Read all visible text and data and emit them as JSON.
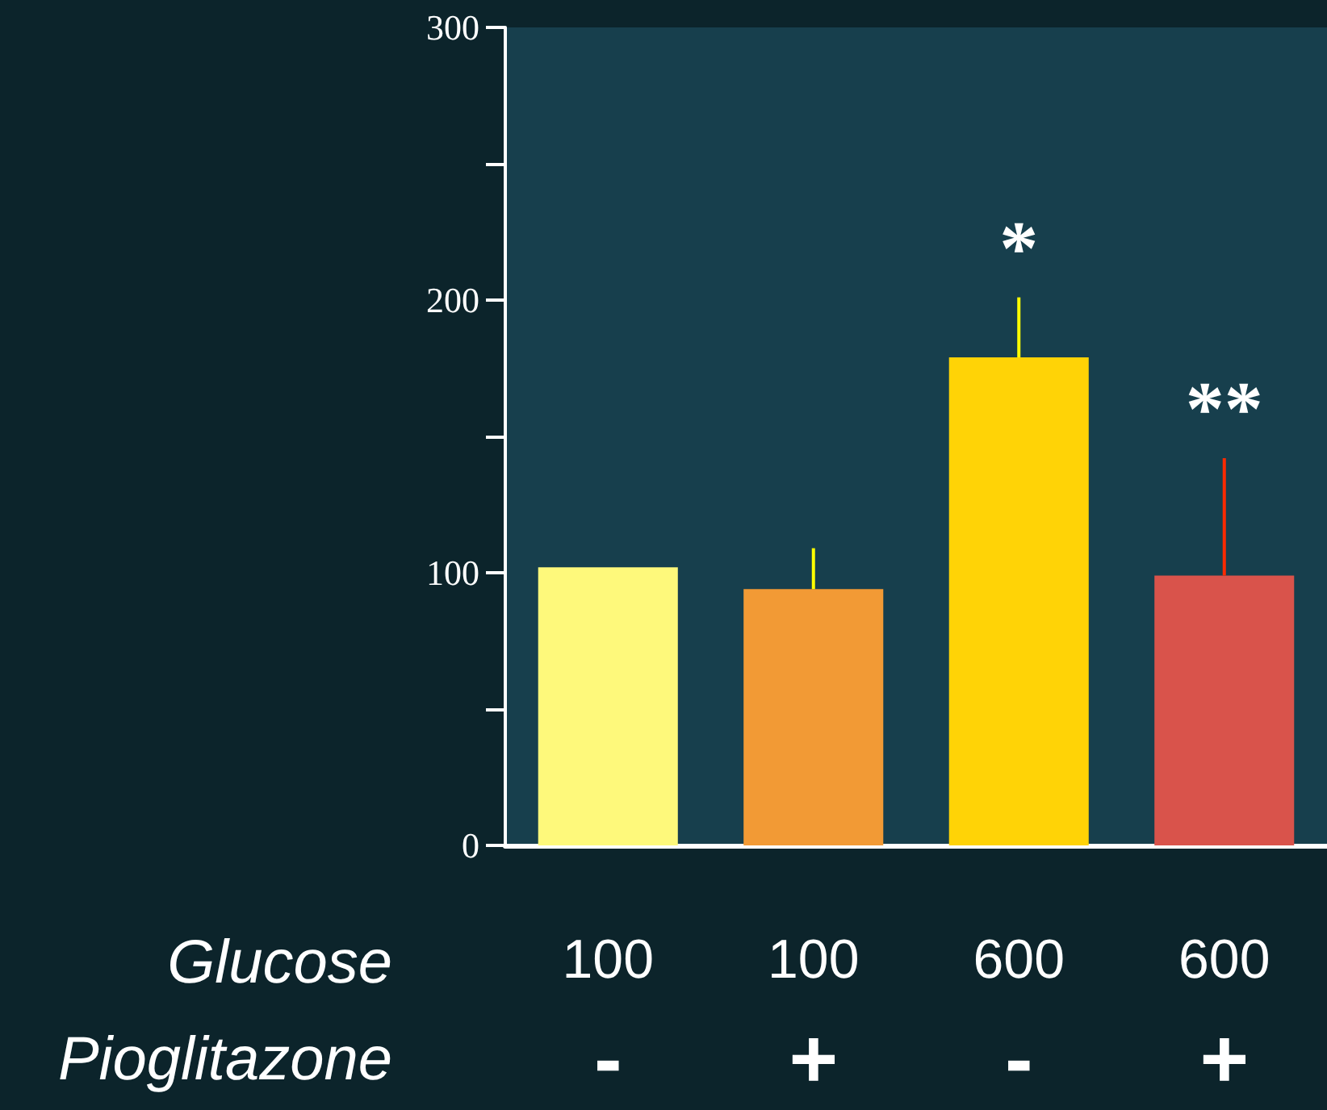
{
  "chart_data": {
    "type": "bar",
    "categories": [
      "100\n-",
      "100\n+",
      "600\n-",
      "600\n+"
    ],
    "values": [
      102,
      94,
      179,
      99
    ],
    "colors": [
      "#fef97b",
      "#f29a35",
      "#ffd306",
      "#d9534b"
    ],
    "errors": [
      null,
      [
        94,
        109
      ],
      [
        179,
        201
      ],
      [
        99,
        142
      ]
    ],
    "ylim": [
      0,
      300
    ],
    "yticks": [
      0,
      {
        "value": 50,
        "label": null
      },
      100,
      {
        "value": 150,
        "label": null
      },
      200,
      {
        "value": 250,
        "label": null
      },
      300
    ],
    "grid": false,
    "annotations": [
      "Glucose",
      "Pioglitazone",
      {
        "text": "*",
        "x": "600\n-",
        "y": 201
      },
      {
        "text": "**",
        "x": "600\n+",
        "y": 142
      }
    ]
  }
}
